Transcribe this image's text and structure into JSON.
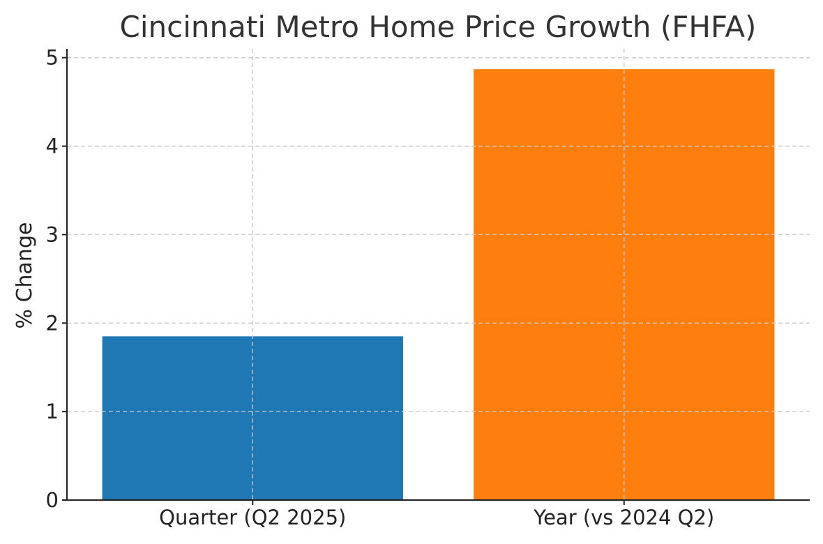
{
  "chart_data": {
    "type": "bar",
    "title": "Cincinnati Metro Home Price Growth (FHFA)",
    "xlabel": "",
    "ylabel": "% Change",
    "categories": [
      "Quarter (Q2 2025)",
      "Year (vs 2024 Q2)"
    ],
    "values": [
      1.85,
      4.87
    ],
    "colors": [
      "#1f77b4",
      "#ff7f0e"
    ],
    "ylim": [
      0,
      5.1
    ],
    "yticks": [
      0,
      1,
      2,
      3,
      4,
      5
    ],
    "ytick_labels": [
      "0",
      "1",
      "2",
      "3",
      "4",
      "5"
    ],
    "grid": true
  }
}
